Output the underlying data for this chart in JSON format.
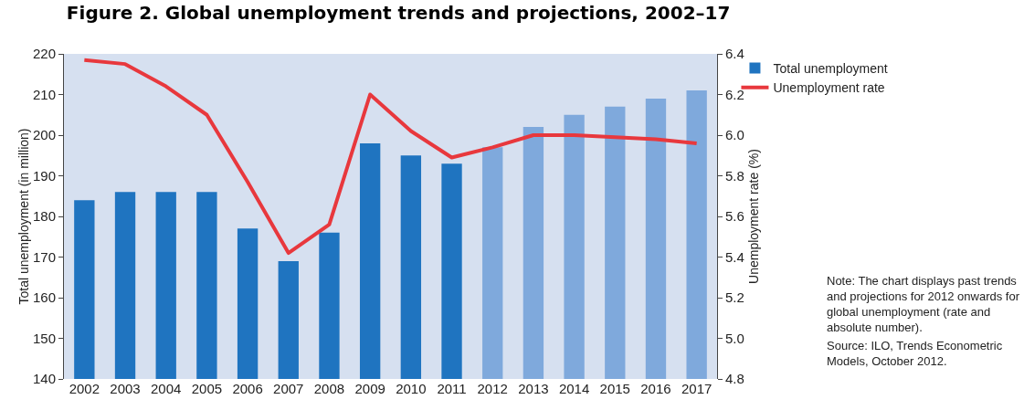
{
  "chart_data": {
    "type": "bar",
    "title": "Figure 2. Global unemployment trends and projections, 2002–17",
    "categories": [
      "2002",
      "2003",
      "2004",
      "2005",
      "2006",
      "2007",
      "2008",
      "2009",
      "2010",
      "2011",
      "2012",
      "2013",
      "2014",
      "2015",
      "2016",
      "2017"
    ],
    "ylabel": "Total unemployment (in million)",
    "y2label": "Unemployment rate (%)",
    "series": [
      {
        "name": "Total unemployment",
        "colors": [
          "#1f74c0",
          "#1f74c0",
          "#1f74c0",
          "#1f74c0",
          "#1f74c0",
          "#1f74c0",
          "#1f74c0",
          "#1f74c0",
          "#1f74c0",
          "#1f74c0",
          "#7fa9dc",
          "#7fa9dc",
          "#7fa9dc",
          "#7fa9dc",
          "#7fa9dc",
          "#7fa9dc"
        ],
        "values": [
          184,
          186,
          186,
          186,
          177,
          169,
          176,
          198,
          195,
          193,
          197,
          202,
          205,
          207,
          209,
          211
        ]
      },
      {
        "name": "Unemployment rate",
        "type": "line",
        "axis": "y2",
        "color": "#e8383d",
        "values": [
          6.37,
          6.35,
          6.24,
          6.1,
          5.77,
          5.42,
          5.56,
          6.2,
          6.02,
          5.89,
          5.94,
          6.0,
          6.0,
          5.99,
          5.98,
          5.96
        ]
      }
    ],
    "ylim": [
      140,
      220
    ],
    "yticks": [
      140,
      150,
      160,
      170,
      180,
      190,
      200,
      210,
      220
    ],
    "y2lim": [
      4.8,
      6.4
    ],
    "y2ticks": [
      {
        "value": 4.8,
        "label": "4.8"
      },
      {
        "value": 5.0,
        "label": "5.0"
      },
      {
        "value": 5.2,
        "label": "5.2"
      },
      {
        "value": 5.4,
        "label": "5.4"
      },
      {
        "value": 5.6,
        "label": "5.6"
      },
      {
        "value": 5.8,
        "label": "5.8"
      },
      {
        "value": 6.0,
        "label": "6.0"
      },
      {
        "value": 6.2,
        "label": "6.2"
      },
      {
        "value": 6.4,
        "label": "6.4"
      }
    ],
    "legend": "top right",
    "grid": false,
    "marker": "none",
    "line_style": "solid",
    "annotations": [
      "Note: The chart displays past trends and projections for 2012 onwards for global unemployment (rate and absolute number).",
      "Source: ILO, Trends Econometric Models, October 2012."
    ]
  }
}
